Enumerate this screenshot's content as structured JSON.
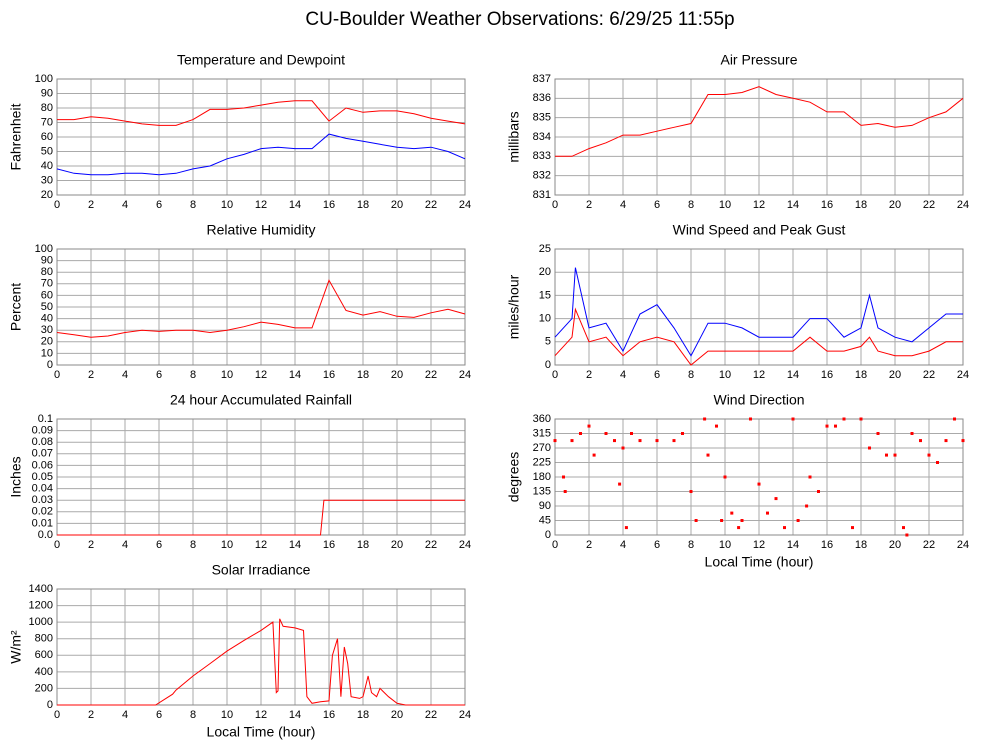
{
  "title": "CU-Boulder Weather Observations: 6/29/25 11:55p",
  "chart_data": [
    {
      "type": "line",
      "title": "Temperature and Dewpoint",
      "ylabel": "Fahrenheit",
      "x": [
        0,
        1,
        2,
        3,
        4,
        5,
        6,
        7,
        8,
        9,
        10,
        11,
        12,
        13,
        14,
        15,
        16,
        17,
        18,
        19,
        20,
        21,
        22,
        23,
        24
      ],
      "series": [
        {
          "color": "#ff0000",
          "values": [
            72,
            72,
            74,
            73,
            71,
            69,
            68,
            68,
            72,
            79,
            79,
            80,
            82,
            84,
            85,
            85,
            71,
            80,
            77,
            78,
            78,
            76,
            73,
            71,
            69
          ]
        },
        {
          "color": "#0000ff",
          "values": [
            38,
            35,
            34,
            34,
            35,
            35,
            34,
            35,
            38,
            40,
            45,
            48,
            52,
            53,
            52,
            52,
            62,
            59,
            57,
            55,
            53,
            52,
            53,
            50,
            45
          ]
        }
      ],
      "xlim": [
        0,
        24
      ],
      "xticks": [
        0,
        2,
        4,
        6,
        8,
        10,
        12,
        14,
        16,
        18,
        20,
        22,
        24
      ],
      "ylim": [
        20,
        100
      ],
      "yticks": [
        20,
        30,
        40,
        50,
        60,
        70,
        80,
        90,
        100
      ],
      "grid": true
    },
    {
      "type": "line",
      "title": "Relative Humidity",
      "ylabel": "Percent",
      "x": [
        0,
        1,
        2,
        3,
        4,
        5,
        6,
        7,
        8,
        9,
        10,
        11,
        12,
        13,
        14,
        15,
        16,
        17,
        18,
        19,
        20,
        21,
        22,
        23,
        24
      ],
      "series": [
        {
          "color": "#ff0000",
          "values": [
            28,
            26,
            24,
            25,
            28,
            30,
            29,
            30,
            30,
            28,
            30,
            33,
            37,
            35,
            32,
            32,
            73,
            47,
            43,
            46,
            42,
            41,
            45,
            48,
            44
          ]
        }
      ],
      "xlim": [
        0,
        24
      ],
      "xticks": [
        0,
        2,
        4,
        6,
        8,
        10,
        12,
        14,
        16,
        18,
        20,
        22,
        24
      ],
      "ylim": [
        0,
        100
      ],
      "yticks": [
        0,
        10,
        20,
        30,
        40,
        50,
        60,
        70,
        80,
        90,
        100
      ],
      "grid": true
    },
    {
      "type": "line",
      "title": "24 hour Accumulated Rainfall",
      "ylabel": "Inches",
      "x": [
        0,
        15.5,
        15.7,
        24
      ],
      "series": [
        {
          "color": "#ff0000",
          "values": [
            0,
            0,
            0.03,
            0.03
          ]
        }
      ],
      "xlim": [
        0,
        24
      ],
      "xticks": [
        0,
        2,
        4,
        6,
        8,
        10,
        12,
        14,
        16,
        18,
        20,
        22,
        24
      ],
      "ylim": [
        0,
        0.1
      ],
      "yticks": [
        {
          "value": 0,
          "label": "0.0"
        },
        0.01,
        0.02,
        0.03,
        0.04,
        0.05,
        0.06,
        0.07,
        0.08,
        0.09,
        0.1
      ],
      "grid": true
    },
    {
      "type": "line",
      "title": "Solar Irradiance",
      "ylabel": "W/m²",
      "xlabel": "Local Time (hour)",
      "x": [
        0,
        5.8,
        6.8,
        7,
        8,
        9,
        10,
        11,
        12,
        12.7,
        12.9,
        13.0,
        13.1,
        13.3,
        14,
        14.5,
        14.7,
        15,
        15.5,
        16,
        16.2,
        16.5,
        16.7,
        16.9,
        17.1,
        17.3,
        17.8,
        18,
        18.3,
        18.5,
        18.8,
        19,
        19.5,
        20,
        20.5,
        24
      ],
      "series": [
        {
          "color": "#ff0000",
          "values": [
            0,
            0,
            130,
            180,
            350,
            500,
            650,
            780,
            900,
            1000,
            150,
            170,
            1040,
            950,
            930,
            900,
            100,
            20,
            40,
            50,
            600,
            800,
            100,
            700,
            500,
            100,
            80,
            100,
            350,
            150,
            100,
            200,
            100,
            20,
            0,
            0
          ]
        }
      ],
      "xlim": [
        0,
        24
      ],
      "xticks": [
        0,
        2,
        4,
        6,
        8,
        10,
        12,
        14,
        16,
        18,
        20,
        22,
        24
      ],
      "ylim": [
        0,
        1400
      ],
      "yticks": [
        0,
        200,
        400,
        600,
        800,
        1000,
        1200,
        1400
      ],
      "grid": true
    },
    {
      "type": "line",
      "title": "Air Pressure",
      "ylabel": "millibars",
      "x": [
        0,
        1,
        2,
        3,
        4,
        5,
        6,
        7,
        8,
        9,
        10,
        11,
        12,
        13,
        14,
        15,
        16,
        17,
        18,
        19,
        20,
        21,
        22,
        23,
        24
      ],
      "series": [
        {
          "color": "#ff0000",
          "values": [
            833.0,
            833.0,
            833.4,
            833.7,
            834.1,
            834.1,
            834.3,
            834.5,
            834.7,
            836.2,
            836.2,
            836.3,
            836.6,
            836.2,
            836.0,
            835.8,
            835.3,
            835.3,
            834.6,
            834.7,
            834.5,
            834.6,
            835.0,
            835.3,
            836.0
          ]
        }
      ],
      "xlim": [
        0,
        24
      ],
      "xticks": [
        0,
        2,
        4,
        6,
        8,
        10,
        12,
        14,
        16,
        18,
        20,
        22,
        24
      ],
      "ylim": [
        831,
        837
      ],
      "yticks": [
        831,
        832,
        833,
        834,
        835,
        836,
        837
      ],
      "grid": true
    },
    {
      "type": "line",
      "title": "Wind Speed and Peak Gust",
      "ylabel": "miles/hour",
      "x": [
        0,
        1,
        1.2,
        2,
        3,
        4,
        5,
        6,
        7,
        8,
        9,
        10,
        11,
        12,
        13,
        14,
        15,
        16,
        17,
        18,
        18.5,
        19,
        20,
        21,
        22,
        23,
        24
      ],
      "series": [
        {
          "color": "#0000ff",
          "values": [
            6,
            10,
            21,
            8,
            9,
            3,
            11,
            13,
            8,
            2,
            9,
            9,
            8,
            6,
            6,
            6,
            10,
            10,
            6,
            8,
            15,
            8,
            6,
            5,
            8,
            11,
            11
          ]
        },
        {
          "color": "#ff0000",
          "values": [
            2,
            6,
            12,
            5,
            6,
            2,
            5,
            6,
            5,
            0,
            3,
            3,
            3,
            3,
            3,
            3,
            6,
            3,
            3,
            4,
            6,
            3,
            2,
            2,
            3,
            5,
            5
          ]
        }
      ],
      "xlim": [
        0,
        24
      ],
      "xticks": [
        0,
        2,
        4,
        6,
        8,
        10,
        12,
        14,
        16,
        18,
        20,
        22,
        24
      ],
      "ylim": [
        0,
        25
      ],
      "yticks": [
        0,
        5,
        10,
        15,
        20,
        25
      ],
      "grid": true
    },
    {
      "type": "scatter",
      "title": "Wind Direction",
      "ylabel": "degrees",
      "xlabel": "Local Time (hour)",
      "x": [
        0,
        0.5,
        0.6,
        1,
        1.5,
        2,
        2.3,
        3,
        3.5,
        3.8,
        4,
        4.2,
        4.5,
        5,
        6,
        7,
        7.5,
        8,
        8.3,
        8.8,
        9,
        9.5,
        9.8,
        10,
        10.4,
        10.8,
        11,
        11.5,
        12,
        12.5,
        13,
        13.5,
        14,
        14.3,
        14.8,
        15,
        15.5,
        16,
        16.5,
        17,
        17.5,
        18,
        18.5,
        19,
        19.5,
        20,
        20.5,
        20.7,
        21,
        21.5,
        22,
        22.5,
        23,
        23.5,
        24
      ],
      "series": [
        {
          "color": "#ff0000",
          "values": [
            293,
            180,
            135,
            293,
            315,
            338,
            248,
            315,
            293,
            158,
            270,
            23,
            315,
            293,
            293,
            293,
            315,
            135,
            45,
            360,
            248,
            338,
            45,
            180,
            68,
            23,
            45,
            360,
            158,
            68,
            113,
            23,
            360,
            45,
            90,
            180,
            135,
            338,
            338,
            360,
            23,
            360,
            270,
            315,
            248,
            248,
            23,
            0,
            315,
            293,
            248,
            225,
            293,
            360,
            293
          ]
        }
      ],
      "xlim": [
        0,
        24
      ],
      "xticks": [
        0,
        2,
        4,
        6,
        8,
        10,
        12,
        14,
        16,
        18,
        20,
        22,
        24
      ],
      "ylim": [
        0,
        360
      ],
      "yticks": [
        0,
        45,
        90,
        135,
        180,
        225,
        270,
        315,
        360
      ],
      "grid": true
    }
  ]
}
